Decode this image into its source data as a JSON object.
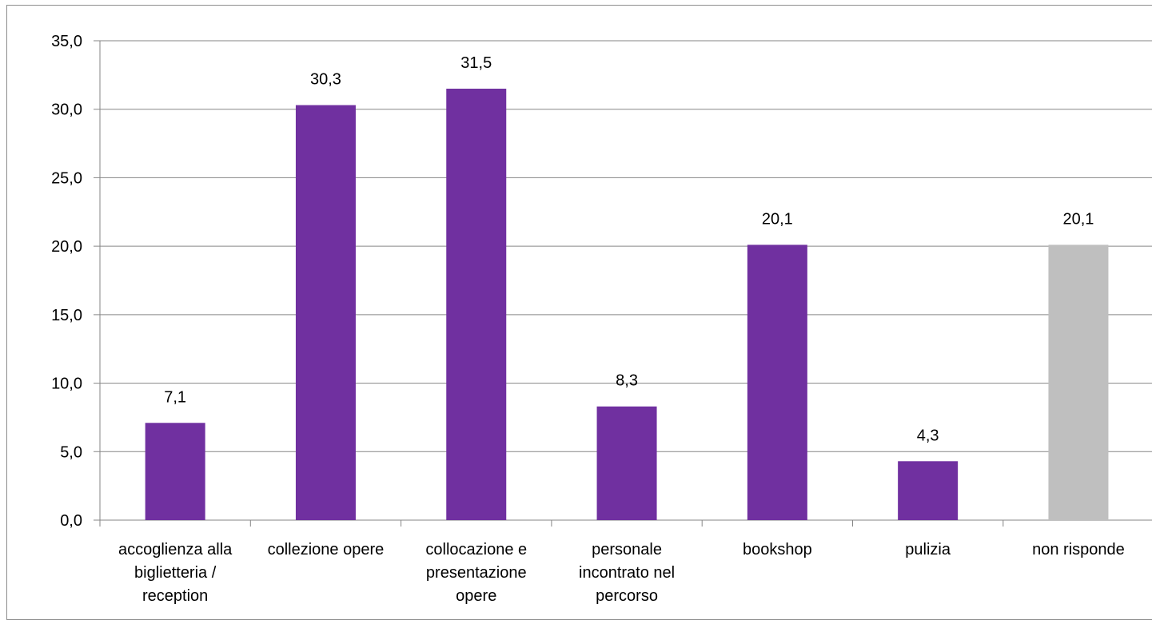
{
  "chart_data": {
    "type": "bar",
    "title": "",
    "xlabel": "",
    "ylabel": "",
    "ylim": [
      0,
      35
    ],
    "ytick_step": 5,
    "ytick_labels": [
      "0,0",
      "5,0",
      "10,0",
      "15,0",
      "20,0",
      "25,0",
      "30,0",
      "35,0"
    ],
    "grid": true,
    "legend": "none",
    "categories": [
      [
        "accoglienza alla",
        "biglietteria /",
        "reception"
      ],
      [
        "collezione opere"
      ],
      [
        "collocazione e",
        "presentazione",
        "opere"
      ],
      [
        "personale",
        "incontrato nel",
        "percorso"
      ],
      [
        "bookshop"
      ],
      [
        "pulizia"
      ],
      [
        "non risponde"
      ]
    ],
    "values": [
      7.1,
      30.3,
      31.5,
      8.3,
      20.1,
      4.3,
      20.1
    ],
    "data_labels": [
      "7,1",
      "30,3",
      "31,5",
      "8,3",
      "20,1",
      "4,3",
      "20,1"
    ],
    "colors": [
      "#7030a0",
      "#7030a0",
      "#7030a0",
      "#7030a0",
      "#7030a0",
      "#7030a0",
      "#bfbfbf"
    ]
  }
}
